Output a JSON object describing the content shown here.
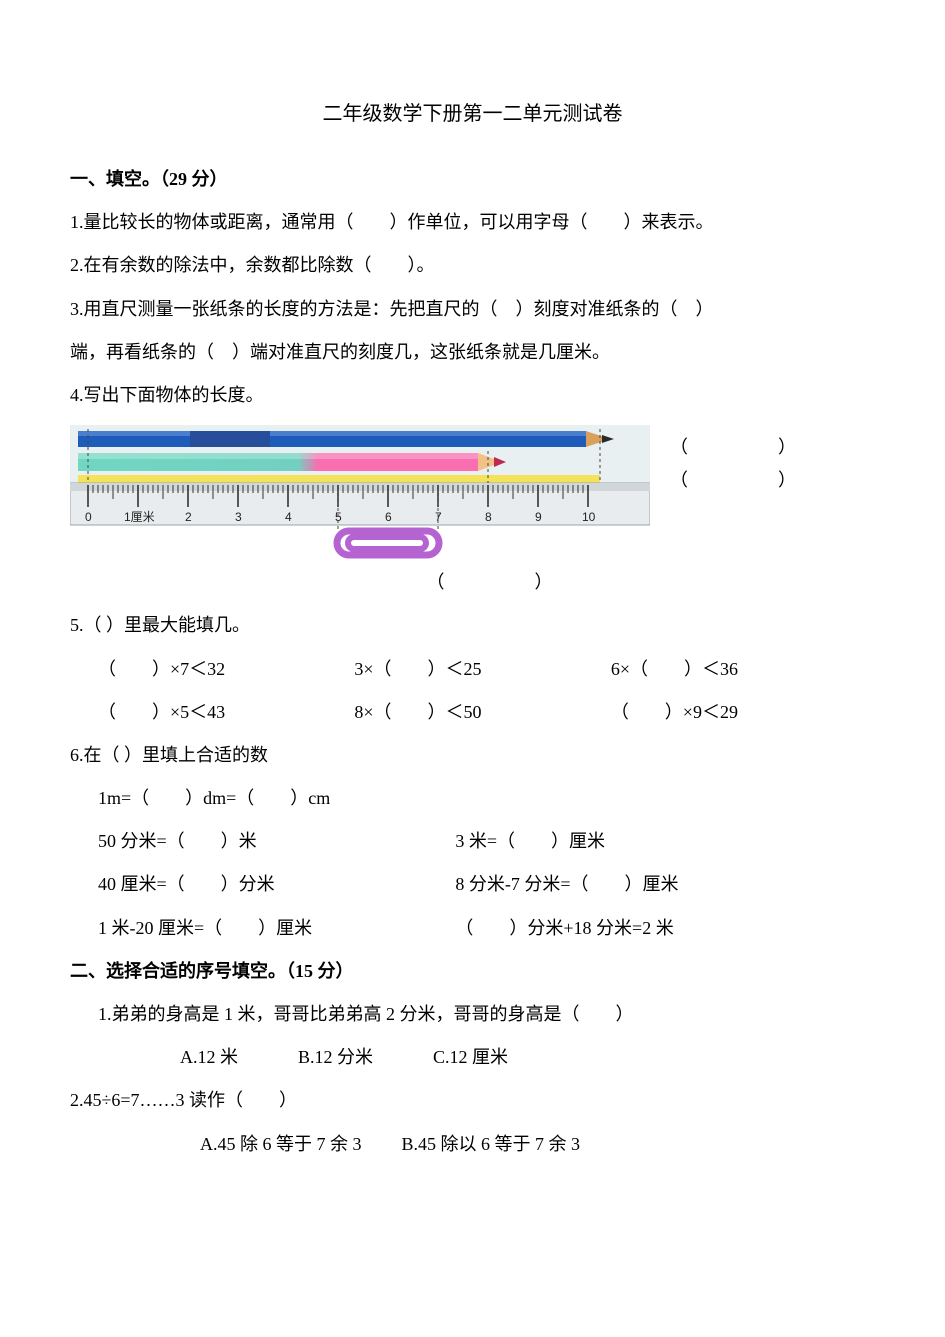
{
  "title": "二年级数学下册第一二单元测试卷",
  "sec1": {
    "head": "一、填空。（29 分）",
    "q1": "1.量比较长的物体或距离，通常用（　　）作单位，可以用字母（　　）来表示。",
    "q2": "2.在有余数的除法中，余数都比除数（　　）。",
    "q3a": "3.用直尺测量一张纸条的长度的方法是：先把直尺的（　）刻度对准纸条的（　）",
    "q3b": "端，再看纸条的（　）端对准直尺的刻度几，这张纸条就是几厘米。",
    "q4": "4.写出下面物体的长度。",
    "ans1": "（　　　　　）",
    "ans2": "（　　　　　）",
    "clip_ans": "（　　　　　）",
    "q5": "5.（ ）里最大能填几。",
    "q5r1a": "（　　）×7＜32",
    "q5r1b": "3×（　　）＜25",
    "q5r1c": "6×（　　）＜36",
    "q5r2a": "（　　）×5＜43",
    "q5r2b": "8×（　　）＜50",
    "q5r2c": "（　　）×9＜29",
    "q6": "6.在（ ）里填上合适的数",
    "q6a": "1m=（　　）dm=（　　）cm",
    "q6b1": "50 分米=（　　）米",
    "q6b2": "3 米=（　　）厘米",
    "q6c1": "40 厘米=（　　）分米",
    "q6c2": "8 分米-7 分米=（　　）厘米",
    "q6d1": "1 米-20 厘米=（　　）厘米",
    "q6d2": "（　　）分米+18 分米=2 米"
  },
  "sec2": {
    "head": "二、选择合适的序号填空。（15 分）",
    "q1": "1.弟弟的身高是 1 米，哥哥比弟弟高 2 分米，哥哥的身高是（　　）",
    "q1a": "A.12 米",
    "q1b": "B.12 分米",
    "q1c": "C.12 厘米",
    "q2": "2.45÷6=7……3 读作（　　）",
    "q2a": "A.45 除 6 等于 7 余 3",
    "q2b": "B.45 除以 6 等于 7 余 3"
  },
  "ruler": {
    "bg": "#e9f0f2",
    "blue_pencil": "#1f5bb8",
    "blue_pencil_band": "#274e9b",
    "blue_tip_wood": "#d9a05b",
    "blue_tip_lead": "#2a2a2a",
    "pink_pencil_start": "#70d7c2",
    "pink_pencil_end": "#f86eb0",
    "pink_tip_wood": "#f2c185",
    "ruler_top": "#d0d6d9",
    "ruler_face": "#e8ecee",
    "tick_color": "#333333",
    "highlight": "#f3e25a",
    "clip_color": "#b563d1",
    "cm_label": "1厘米",
    "ticks": [
      "0",
      "",
      "2",
      "3",
      "4",
      "5",
      "6",
      "7",
      "8",
      "9",
      "10"
    ],
    "pencil_blue_end_cm": 10.3,
    "pencil_pink_end_cm": 8.0,
    "clip_start_cm": 5.0,
    "clip_end_cm": 7.0
  }
}
